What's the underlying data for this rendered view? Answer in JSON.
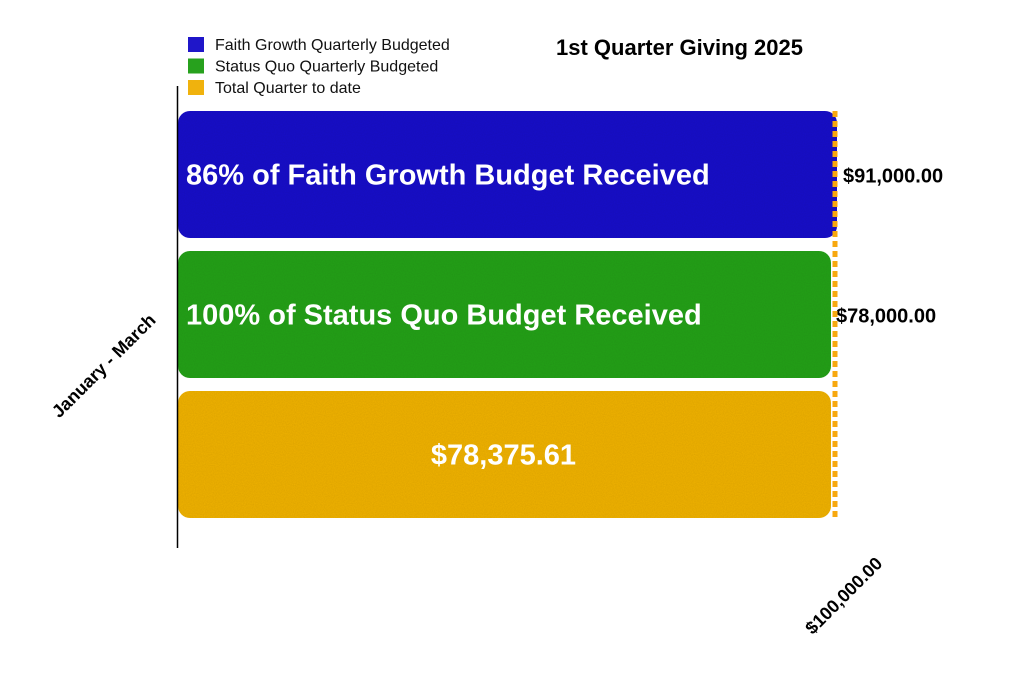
{
  "chart_data": {
    "type": "bar",
    "orientation": "horizontal",
    "title": "1st Quarter Giving 2025",
    "ylabel": "January - March",
    "x_tick_label": "$100,000.00",
    "xlim": [
      0,
      100000
    ],
    "grid": false,
    "legend_position": "top-left",
    "series": [
      {
        "name": "Faith Growth Quarterly Budgeted",
        "value": 91000,
        "color": "#1f16c9",
        "bar_text": "86% of Faith Growth Budget Received",
        "value_text": "$91,000.00"
      },
      {
        "name": "Status Quo Quarterly Budgeted",
        "value": 78000,
        "color": "#27a11d",
        "bar_text": "100% of Status Quo Budget Received",
        "value_text": "$78,000.00"
      },
      {
        "name": "Total Quarter to date",
        "value": 78375.61,
        "color": "#f0b20d",
        "bar_text": "$78,375.61",
        "value_text": ""
      }
    ],
    "reference_line": {
      "color": "#f7a80f",
      "style": "dashed"
    }
  }
}
